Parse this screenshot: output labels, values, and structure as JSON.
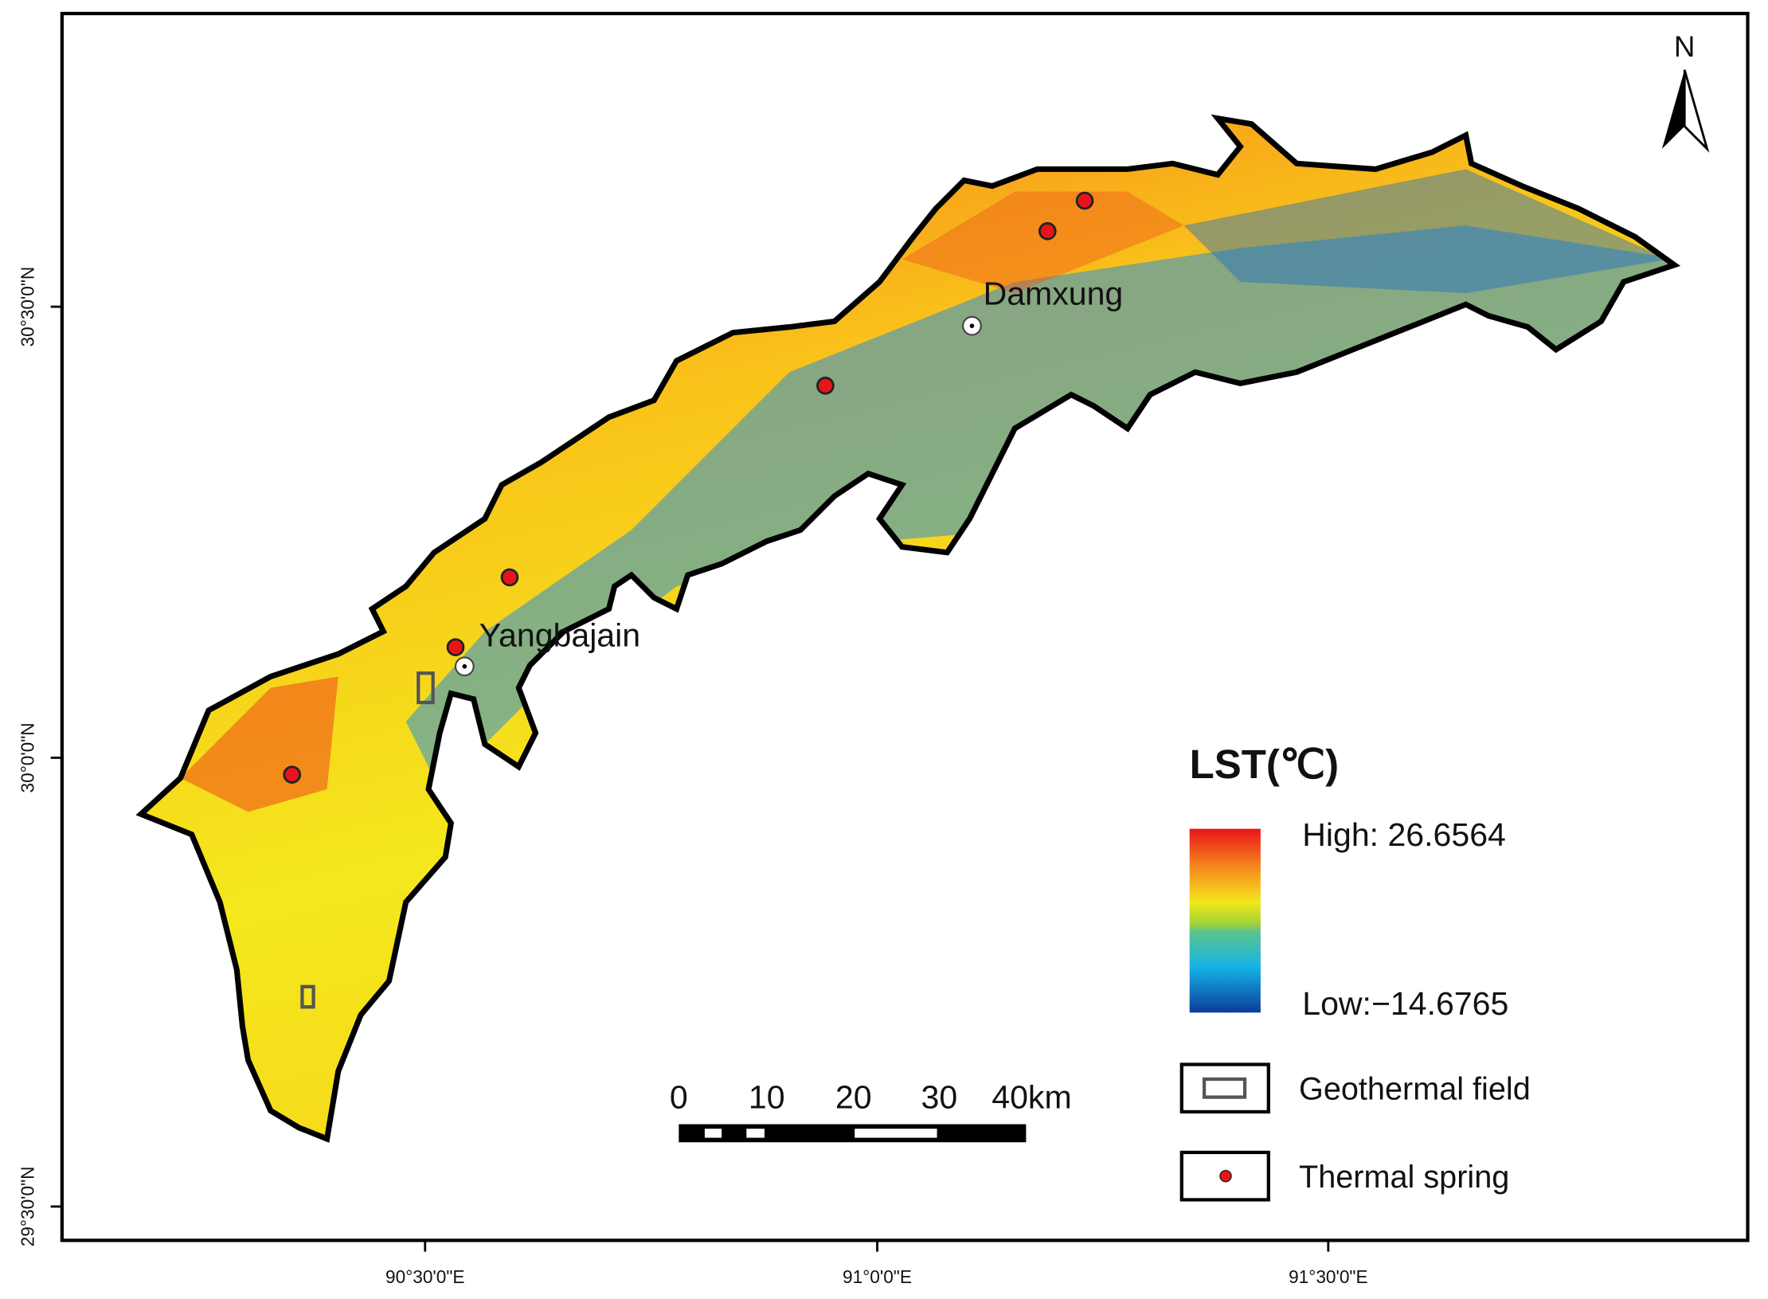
{
  "map": {
    "north_label": "N",
    "places": [
      "Damxung",
      "Yangbajain"
    ],
    "legend": {
      "title": "LST(℃)",
      "high": "High: 26.6564",
      "low": "Low:−14.6765",
      "items": [
        "Geothermal field",
        "Thermal spring"
      ]
    },
    "scale_bar": {
      "labels": [
        "0",
        "10",
        "20",
        "30",
        "40km"
      ]
    },
    "x_axis": {
      "ticks": [
        "90°30'0\"E",
        "91°0'0\"E",
        "91°30'0\"E"
      ]
    },
    "y_axis": {
      "ticks": [
        "30°30'0\"N",
        "30°0'0\"N",
        "29°30'0\"N"
      ]
    }
  }
}
